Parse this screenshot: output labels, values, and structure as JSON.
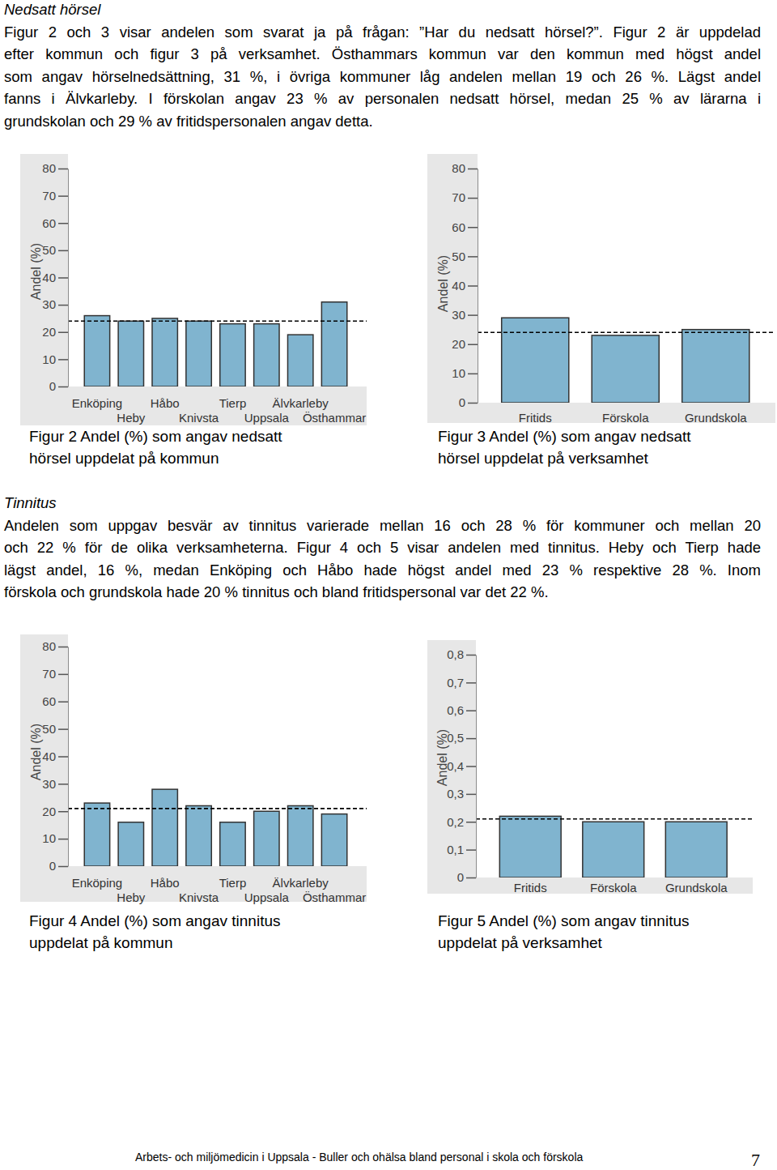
{
  "document": {
    "sections": [
      {
        "heading": "Nedsatt hörsel",
        "lines": [
          "Figur 2 och 3 visar andelen som svarat ja på frågan: ”Har du nedsatt hörsel?”. Figur 2 är uppdelad",
          "efter kommun och figur 3 på verksamhet. Östhammars kommun var den kommun med högst andel",
          "som angav hörselnedsättning, 31 %, i övriga kommuner låg andelen mellan 19 och 26 %. Lägst andel",
          "fanns i Älvkarleby. I förskolan angav 23 % av personalen nedsatt hörsel, medan 25 % av lärarna i",
          "grundskolan och 29 % av fritidspersonalen angav detta."
        ]
      },
      {
        "heading": "Tinnitus",
        "lines": [
          "Andelen som uppgav besvär av tinnitus varierade mellan 16 och 28 % för kommuner och mellan 20",
          "och 22 % för de olika verksamheterna. Figur 4 och 5 visar andelen med tinnitus. Heby och Tierp hade",
          "lägst andel, 16 %, medan Enköping och Håbo hade högst andel med 23 % respektive 28 %. Inom",
          "förskola och grundskola hade 20 % tinnitus och bland fritidspersonal var det 22 %."
        ]
      }
    ],
    "captions": [
      [
        "Figur 2 Andel (%) som angav nedsatt",
        "hörsel uppdelat på kommun"
      ],
      [
        "Figur 3 Andel (%) som angav nedsatt",
        "hörsel uppdelat på verksamhet"
      ],
      [
        "Figur 4 Andel (%) som angav tinnitus",
        "uppdelat på kommun"
      ],
      [
        "Figur 5 Andel (%) som angav tinnitus",
        "uppdelat på verksamhet"
      ]
    ],
    "footer": "Arbets- och miljömedicin i Uppsala - Buller och ohälsa bland personal i skola och förskola",
    "page_number": 7
  },
  "chart_data": [
    {
      "type": "bar",
      "y_label": "Andel (%)",
      "categories": [
        "Enköping",
        "Heby",
        "Håbo",
        "Knivsta",
        "Tierp",
        "Uppsala",
        "Älvkarleby",
        "Östhammar"
      ],
      "values": [
        26,
        24,
        25,
        24,
        23,
        23,
        19,
        31
      ],
      "average": 24,
      "color": "#80b4cf",
      "ylim": [
        0,
        80
      ],
      "yticks": [
        0,
        10,
        20,
        30,
        40,
        50,
        60,
        70,
        80
      ],
      "grid": false
    },
    {
      "type": "bar",
      "y_label": "Andel (%)",
      "categories": [
        "Fritids",
        "Förskola",
        "Grundskola"
      ],
      "values": [
        29,
        23,
        25
      ],
      "average": 24,
      "color": "#80b4cf",
      "ylim": [
        0,
        80
      ],
      "yticks": [
        0,
        10,
        20,
        30,
        40,
        50,
        60,
        70,
        80
      ],
      "grid": false
    },
    {
      "type": "bar",
      "y_label": "Andel (%)",
      "categories": [
        "Enköping",
        "Heby",
        "Håbo",
        "Knivsta",
        "Tierp",
        "Uppsala",
        "Älvkarleby",
        "Östhammar"
      ],
      "values": [
        23,
        16,
        28,
        22,
        16,
        20,
        22,
        19
      ],
      "average": 21,
      "color": "#80b4cf",
      "ylim": [
        0,
        80
      ],
      "yticks": [
        0,
        10,
        20,
        30,
        40,
        50,
        60,
        70,
        80
      ],
      "grid": false
    },
    {
      "type": "bar",
      "y_label": "Andel (%)",
      "categories": [
        "Fritids",
        "Förskola",
        "Grundskola"
      ],
      "values": [
        0.22,
        0.2,
        0.2
      ],
      "average": 0.21,
      "color": "#80b4cf",
      "ylim": [
        0,
        0.8
      ],
      "yticks": [
        0,
        {
          "value": 0.1,
          "label": "0,1"
        },
        {
          "value": 0.2,
          "label": "0,2"
        },
        {
          "value": 0.3,
          "label": "0,3"
        },
        {
          "value": 0.4,
          "label": "0,4"
        },
        {
          "value": 0.5,
          "label": "0,5"
        },
        {
          "value": 0.6,
          "label": "0,6"
        },
        {
          "value": 0.7,
          "label": "0,7"
        },
        {
          "value": 0.8,
          "label": "0,8"
        }
      ],
      "grid": false
    }
  ]
}
